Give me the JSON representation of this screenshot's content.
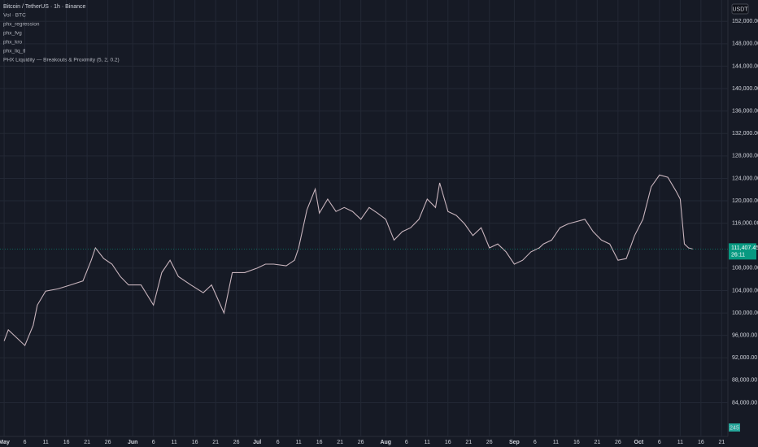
{
  "legend_lines": [
    "Bitcoin / TetherUS · 1h · Binance",
    "Vol · BTC",
    "phx_regression",
    "phx_fvg",
    "phx_kro",
    "phx_liq_tl",
    "PHX Liquidity — Breakouts & Proximity (5, 2, 0.2)"
  ],
  "currency": "USDT",
  "countdown": "26:11",
  "volume_label": "245",
  "chart_data": {
    "type": "line",
    "x": [
      0,
      1,
      5,
      7,
      8,
      10,
      13,
      16,
      19,
      21,
      22,
      24,
      26,
      28,
      30,
      33,
      36,
      38,
      40,
      42,
      45,
      48,
      50,
      53,
      55,
      58,
      61,
      63,
      65,
      68,
      70,
      71,
      73,
      75,
      76,
      78,
      80,
      82,
      84,
      86,
      88,
      90,
      92,
      94,
      96,
      98,
      100,
      102,
      104,
      105,
      107,
      109,
      111,
      113,
      115,
      117,
      119,
      121,
      123,
      125,
      127,
      129,
      130,
      132,
      134,
      136,
      138,
      140,
      142,
      144,
      146,
      148,
      150,
      152,
      154,
      156,
      158,
      160,
      162,
      163,
      164,
      165,
      166
    ],
    "series": [
      {
        "name": "BTCUSDT",
        "color": "#c8b4bd",
        "values": [
          95000,
          97000,
          94200,
          97800,
          101400,
          103900,
          104300,
          105000,
          105700,
          109400,
          111600,
          109700,
          108700,
          106500,
          105000,
          105000,
          101400,
          107200,
          109400,
          106500,
          105000,
          103600,
          105000,
          100000,
          107200,
          107200,
          108000,
          108700,
          108700,
          108400,
          109400,
          111600,
          118400,
          122100,
          117800,
          120300,
          118100,
          118800,
          118100,
          116700,
          118800,
          117800,
          116700,
          113000,
          114500,
          115200,
          116700,
          120300,
          118800,
          123200,
          118100,
          117400,
          115900,
          113800,
          115200,
          111600,
          112300,
          110900,
          108700,
          109400,
          110900,
          111600,
          112300,
          113000,
          115200,
          115900,
          116300,
          116700,
          114500,
          113000,
          112300,
          109400,
          109700,
          113800,
          116700,
          122500,
          124600,
          124200,
          121700,
          120300,
          112300,
          111600,
          111400
        ]
      }
    ],
    "last_price": {
      "value": 111407.45,
      "label": "111,407.45"
    },
    "last_price_color": "#089981",
    "xlim": [
      -1,
      174.5
    ],
    "ylim": [
      79000,
      155800
    ],
    "grid": true,
    "xticks": [
      {
        "value": 0,
        "label": "May"
      },
      {
        "value": 5,
        "label": "6"
      },
      {
        "value": 10,
        "label": "11"
      },
      {
        "value": 15,
        "label": "16"
      },
      {
        "value": 20,
        "label": "21"
      },
      {
        "value": 25,
        "label": "26"
      },
      {
        "value": 31,
        "label": "Jun"
      },
      {
        "value": 36,
        "label": "6"
      },
      {
        "value": 41,
        "label": "11"
      },
      {
        "value": 46,
        "label": "16"
      },
      {
        "value": 51,
        "label": "21"
      },
      {
        "value": 56,
        "label": "26"
      },
      {
        "value": 61,
        "label": "Jul"
      },
      {
        "value": 66,
        "label": "6"
      },
      {
        "value": 71,
        "label": "11"
      },
      {
        "value": 76,
        "label": "16"
      },
      {
        "value": 81,
        "label": "21"
      },
      {
        "value": 86,
        "label": "26"
      },
      {
        "value": 92,
        "label": "Aug"
      },
      {
        "value": 97,
        "label": "6"
      },
      {
        "value": 102,
        "label": "11"
      },
      {
        "value": 107,
        "label": "16"
      },
      {
        "value": 112,
        "label": "21"
      },
      {
        "value": 117,
        "label": "26"
      },
      {
        "value": 123,
        "label": "Sep"
      },
      {
        "value": 128,
        "label": "6"
      },
      {
        "value": 133,
        "label": "11"
      },
      {
        "value": 138,
        "label": "16"
      },
      {
        "value": 143,
        "label": "21"
      },
      {
        "value": 148,
        "label": "26"
      },
      {
        "value": 153,
        "label": "Oct"
      },
      {
        "value": 158,
        "label": "6"
      },
      {
        "value": 163,
        "label": "11"
      },
      {
        "value": 168,
        "label": "16"
      },
      {
        "value": 173,
        "label": "21"
      }
    ],
    "yticks": [
      {
        "value": 84000,
        "label": "84,000.00"
      },
      {
        "value": 88000,
        "label": "88,000.00"
      },
      {
        "value": 92000,
        "label": "92,000.00"
      },
      {
        "value": 96000,
        "label": "96,000.00"
      },
      {
        "value": 100000,
        "label": "100,000.00"
      },
      {
        "value": 104000,
        "label": "104,000.00"
      },
      {
        "value": 108000,
        "label": "108,000.00"
      },
      {
        "value": 116000,
        "label": "116,000.00"
      },
      {
        "value": 120000,
        "label": "120,000.00"
      },
      {
        "value": 124000,
        "label": "124,000.00"
      },
      {
        "value": 128000,
        "label": "128,000.00"
      },
      {
        "value": 132000,
        "label": "132,000.00"
      },
      {
        "value": 136000,
        "label": "136,000.00"
      },
      {
        "value": 140000,
        "label": "140,000.00"
      },
      {
        "value": 144000,
        "label": "144,000.00"
      },
      {
        "value": 148000,
        "label": "148,000.00"
      },
      {
        "value": 152000,
        "label": "152,000.00"
      }
    ]
  }
}
